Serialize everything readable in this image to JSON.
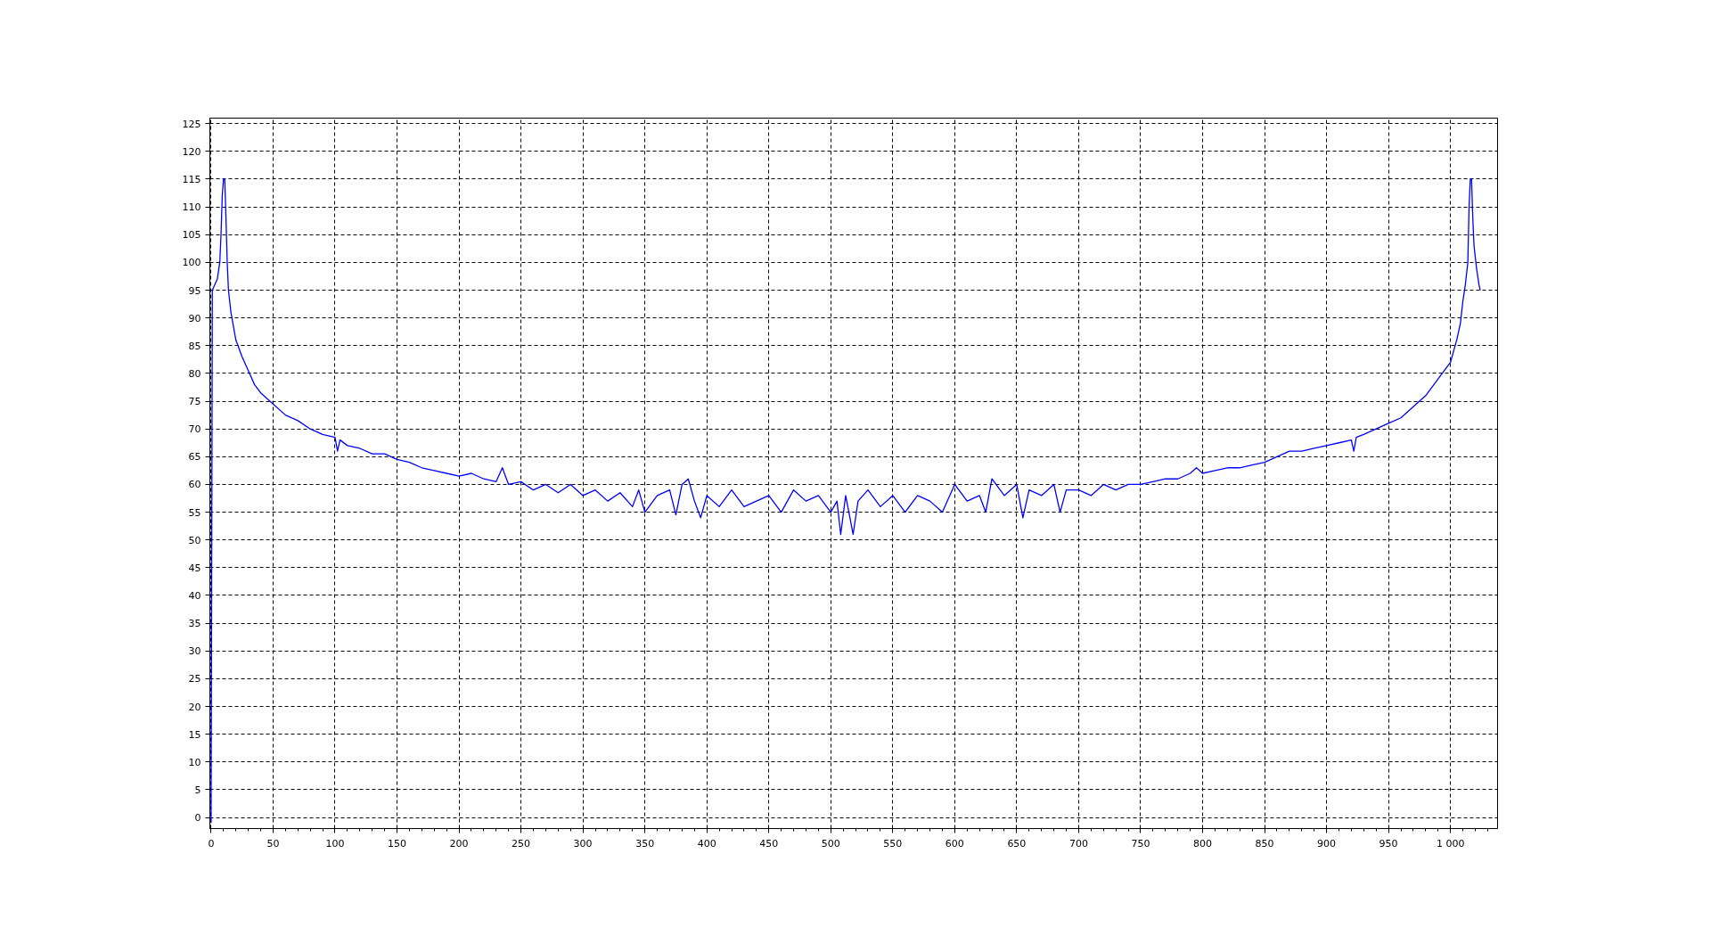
{
  "chart_data": {
    "type": "line",
    "x": [
      0,
      1,
      3,
      5,
      7,
      8,
      9,
      10,
      11,
      12,
      13,
      14,
      16,
      20,
      25,
      30,
      35,
      40,
      50,
      60,
      70,
      80,
      90,
      100,
      102,
      104,
      110,
      120,
      130,
      140,
      150,
      160,
      170,
      180,
      190,
      200,
      210,
      220,
      230,
      235,
      240,
      250,
      260,
      270,
      280,
      290,
      300,
      310,
      320,
      330,
      340,
      345,
      350,
      360,
      370,
      375,
      380,
      385,
      390,
      395,
      400,
      410,
      420,
      430,
      440,
      450,
      460,
      470,
      480,
      490,
      500,
      505,
      508,
      512,
      518,
      522,
      530,
      540,
      550,
      560,
      570,
      580,
      590,
      600,
      610,
      620,
      625,
      630,
      640,
      650,
      655,
      660,
      670,
      680,
      685,
      690,
      700,
      710,
      720,
      730,
      740,
      750,
      760,
      770,
      780,
      790,
      795,
      800,
      810,
      820,
      830,
      840,
      850,
      860,
      870,
      880,
      890,
      900,
      910,
      920,
      922,
      924,
      930,
      940,
      950,
      960,
      970,
      980,
      990,
      1000,
      1005,
      1008,
      1010,
      1012,
      1014,
      1015,
      1016,
      1017,
      1018,
      1019,
      1021,
      1023,
      1024
    ],
    "series": [
      {
        "color": "#0000ff",
        "values": [
          -1,
          95,
          96,
          97,
          100,
          105,
          112,
          115,
          115,
          108,
          100,
          95,
          91,
          86,
          83,
          80.5,
          78,
          76.5,
          74.5,
          72.5,
          71.5,
          70,
          69,
          68.5,
          66,
          68,
          67,
          66.5,
          65.5,
          65.5,
          64.5,
          64,
          63,
          62.5,
          62,
          61.5,
          62,
          61,
          60.5,
          63,
          60,
          60.5,
          59,
          60,
          58.5,
          60,
          58,
          59,
          57,
          58.5,
          56,
          59,
          55,
          58,
          59,
          54.5,
          60,
          61,
          57,
          54,
          58,
          56,
          59,
          56,
          57,
          58,
          55,
          59,
          57,
          58,
          55,
          57,
          51,
          58,
          51,
          57,
          59,
          56,
          58,
          55,
          58,
          57,
          55,
          60,
          57,
          58,
          55,
          61,
          58,
          60,
          54,
          59,
          58,
          60,
          55,
          59,
          59,
          58,
          60,
          59,
          60,
          60,
          60.5,
          61,
          61,
          62,
          63,
          62,
          62.5,
          63,
          63,
          63.5,
          64,
          65,
          66,
          66,
          66.5,
          67,
          67.5,
          68,
          66,
          68.5,
          69,
          70,
          71,
          72,
          74,
          76,
          79,
          82,
          86,
          89,
          93,
          96,
          100,
          110,
          115,
          115,
          108,
          103,
          99,
          96,
          95
        ]
      }
    ],
    "xlim": [
      -1,
      1038
    ],
    "ylim": [
      -2,
      126
    ],
    "xticks": [
      0,
      50,
      100,
      150,
      200,
      250,
      300,
      350,
      400,
      450,
      500,
      550,
      600,
      650,
      700,
      750,
      800,
      850,
      900,
      950,
      {
        "value": 1000,
        "label": "1 000"
      }
    ],
    "yticks": [
      0,
      5,
      10,
      15,
      20,
      25,
      30,
      35,
      40,
      45,
      50,
      55,
      60,
      65,
      70,
      75,
      80,
      85,
      90,
      95,
      100,
      105,
      110,
      115,
      120,
      125
    ],
    "grid": true,
    "line_style": "solid",
    "marker": "none"
  }
}
